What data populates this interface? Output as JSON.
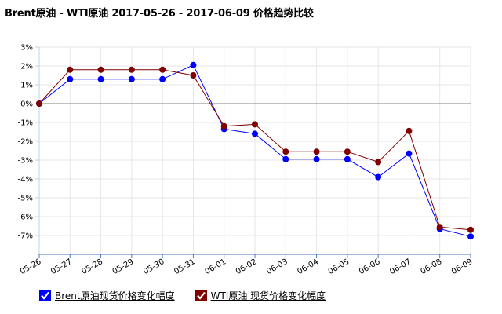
{
  "title": "Brent原油 - WTI原油 2017-05-26 - 2017-06-09 价格趋势比较",
  "chart_data": {
    "type": "line",
    "title": "Brent原油 - WTI原油 2017-05-26 - 2017-06-09 价格趋势比较",
    "x": [
      "05-26",
      "05-27",
      "05-28",
      "05-29",
      "05-30",
      "05-31",
      "06-01",
      "06-02",
      "06-03",
      "06-04",
      "06-05",
      "06-06",
      "06-07",
      "06-08",
      "06-09"
    ],
    "yticks": [
      "3%",
      "2%",
      "1%",
      "0%",
      "-1%",
      "-2%",
      "-3%",
      "-4%",
      "-5%",
      "-6%",
      "-7%"
    ],
    "ylim": [
      -8.0,
      3.0
    ],
    "unit": "%",
    "grid": true,
    "legend_position": "bottom-left",
    "series": [
      {
        "name": "Brent原油现货价格变化幅度",
        "color": "#0000ff",
        "values": [
          0.0,
          1.3,
          1.3,
          1.3,
          1.3,
          2.05,
          -1.35,
          -1.6,
          -2.95,
          -2.95,
          -2.95,
          -3.9,
          -2.65,
          -6.65,
          -7.05
        ]
      },
      {
        "name": "WTI原油 现货价格变化幅度",
        "color": "#800000",
        "values": [
          0.0,
          1.8,
          1.8,
          1.8,
          1.8,
          1.5,
          -1.2,
          -1.1,
          -2.55,
          -2.55,
          -2.55,
          -3.1,
          -1.45,
          -6.55,
          -6.7
        ]
      }
    ]
  },
  "legend": {
    "items": [
      {
        "label": "Brent原油现货价格变化幅度",
        "color": "#0000ff"
      },
      {
        "label": "WTI原油 现货价格变化幅度",
        "color": "#800000"
      }
    ]
  }
}
